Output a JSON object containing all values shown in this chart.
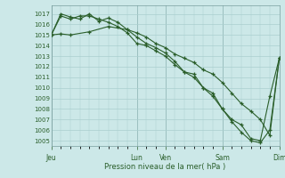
{
  "xlabel": "Pression niveau de la mer( hPa )",
  "background_color": "#cce8e8",
  "plot_bg_color": "#cce8e8",
  "grid_major_color": "#aacfcf",
  "grid_minor_color": "#c0dada",
  "line_color": "#2a5e2a",
  "ylim": [
    1004.5,
    1017.8
  ],
  "yticks": [
    1005,
    1006,
    1007,
    1008,
    1009,
    1010,
    1011,
    1012,
    1013,
    1014,
    1015,
    1016,
    1017
  ],
  "x_day_labels": [
    "Jeu",
    "Lun",
    "Ven",
    "Sam",
    "Dim"
  ],
  "x_day_positions": [
    0,
    9,
    12,
    18,
    24
  ],
  "xlim": [
    0,
    24
  ],
  "series1_x": [
    0,
    1,
    2,
    4,
    6,
    8,
    9,
    10,
    11,
    12,
    13,
    14,
    15,
    16,
    17,
    18,
    19,
    20,
    21,
    22,
    23,
    24
  ],
  "series1_y": [
    1015.0,
    1015.1,
    1015.0,
    1015.3,
    1015.8,
    1015.5,
    1015.2,
    1014.8,
    1014.2,
    1013.8,
    1013.2,
    1012.8,
    1012.4,
    1011.7,
    1011.3,
    1010.5,
    1009.5,
    1008.5,
    1007.8,
    1007.0,
    1005.5,
    1012.8
  ],
  "series2_x": [
    0,
    1,
    2,
    3,
    4,
    5,
    6,
    7,
    8,
    9,
    10,
    11,
    12,
    13,
    14,
    15,
    16,
    17,
    18,
    19,
    20,
    21,
    22,
    23,
    24
  ],
  "series2_y": [
    1015.0,
    1017.0,
    1016.7,
    1016.5,
    1017.0,
    1016.3,
    1016.6,
    1016.2,
    1015.5,
    1014.8,
    1014.2,
    1013.8,
    1013.3,
    1012.5,
    1011.5,
    1011.3,
    1010.0,
    1009.2,
    1008.0,
    1006.8,
    1005.8,
    1005.0,
    1004.8,
    1006.0,
    1012.8
  ],
  "series3_x": [
    0,
    1,
    2,
    3,
    4,
    5,
    6,
    7,
    8,
    9,
    10,
    11,
    12,
    13,
    14,
    15,
    16,
    17,
    18,
    19,
    20,
    21,
    22,
    23,
    24
  ],
  "series3_y": [
    1015.0,
    1016.8,
    1016.5,
    1016.8,
    1016.8,
    1016.5,
    1016.2,
    1015.8,
    1015.2,
    1014.2,
    1014.0,
    1013.5,
    1013.0,
    1012.2,
    1011.5,
    1011.0,
    1010.0,
    1009.5,
    1008.0,
    1007.0,
    1006.5,
    1005.2,
    1005.0,
    1009.2,
    1012.8
  ]
}
